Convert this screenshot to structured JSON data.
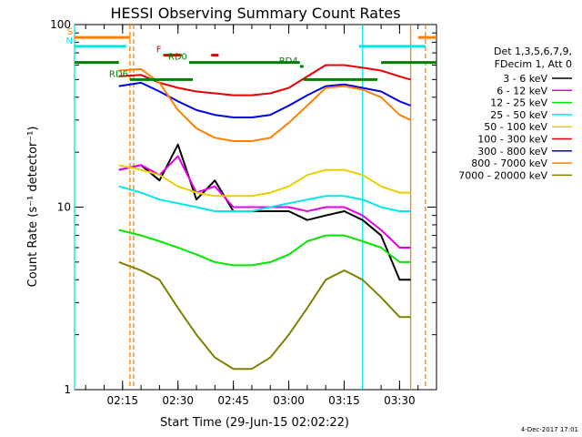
{
  "chart_data": {
    "type": "line",
    "title": "HESSI Observing Summary Count Rates",
    "xlabel": "Start Time (29-Jun-15 02:02:22)",
    "ylabel": "Count Rate (s⁻¹ detector⁻¹)",
    "yscale": "log",
    "ylim": [
      1,
      100
    ],
    "xlim": [
      "02:02",
      "03:40"
    ],
    "x_ticks": [
      "02:15",
      "02:30",
      "02:45",
      "03:00",
      "03:15",
      "03:30"
    ],
    "y_ticks": [
      "1",
      "10",
      "100"
    ],
    "legend_header": [
      "Det 1,3,5,6,7,9,",
      "FDecim 1, Att 0"
    ],
    "legend_placement": "right",
    "series": [
      {
        "name": "3 - 6 keV",
        "color": "#000000",
        "x": [
          "02:14",
          "02:20",
          "02:25",
          "02:30",
          "02:35",
          "02:40",
          "02:45",
          "02:50",
          "02:55",
          "03:00",
          "03:05",
          "03:10",
          "03:15",
          "03:20",
          "03:25",
          "03:30",
          "03:33"
        ],
        "y": [
          16,
          17,
          14,
          22,
          11,
          14,
          9.5,
          9.5,
          9.5,
          9.5,
          8.5,
          9,
          9.5,
          8.5,
          7,
          4,
          4
        ]
      },
      {
        "name": "6 - 12 keV",
        "color": "#e800e8",
        "x": [
          "02:14",
          "02:20",
          "02:25",
          "02:30",
          "02:35",
          "02:40",
          "02:45",
          "02:50",
          "02:55",
          "03:00",
          "03:05",
          "03:10",
          "03:15",
          "03:20",
          "03:25",
          "03:30",
          "03:33"
        ],
        "y": [
          16,
          17,
          15,
          19,
          12,
          13,
          10,
          10,
          10,
          10,
          9.5,
          10,
          10,
          9,
          7.5,
          6,
          6
        ]
      },
      {
        "name": "12 - 25 keV",
        "color": "#00e800",
        "x": [
          "02:14",
          "02:20",
          "02:25",
          "02:30",
          "02:35",
          "02:40",
          "02:45",
          "02:50",
          "02:55",
          "03:00",
          "03:05",
          "03:10",
          "03:15",
          "03:20",
          "03:25",
          "03:30",
          "03:33"
        ],
        "y": [
          7.5,
          7,
          6.5,
          6,
          5.5,
          5,
          4.8,
          4.8,
          5,
          5.5,
          6.5,
          7,
          7,
          6.5,
          6,
          5,
          5
        ]
      },
      {
        "name": "25 - 50 keV",
        "color": "#00e8e8",
        "x": [
          "02:14",
          "02:20",
          "02:25",
          "02:30",
          "02:35",
          "02:40",
          "02:45",
          "02:50",
          "02:55",
          "03:00",
          "03:05",
          "03:10",
          "03:15",
          "03:20",
          "03:25",
          "03:30",
          "03:33"
        ],
        "y": [
          13,
          12,
          11,
          10.5,
          10,
          9.5,
          9.5,
          9.5,
          10,
          10.5,
          11,
          11.5,
          11.5,
          11,
          10,
          9.5,
          9.5
        ]
      },
      {
        "name": "50 - 100 keV",
        "color": "#e8d000",
        "x": [
          "02:14",
          "02:20",
          "02:25",
          "02:30",
          "02:35",
          "02:40",
          "02:45",
          "02:50",
          "02:55",
          "03:00",
          "03:05",
          "03:10",
          "03:15",
          "03:20",
          "03:25",
          "03:30",
          "03:33"
        ],
        "y": [
          17,
          16,
          15,
          13,
          12,
          11.5,
          11.5,
          11.5,
          12,
          13,
          15,
          16,
          16,
          15,
          13,
          12,
          12
        ]
      },
      {
        "name": "100 - 300 keV",
        "color": "#e80000",
        "x": [
          "02:14",
          "02:20",
          "02:25",
          "02:30",
          "02:35",
          "02:40",
          "02:45",
          "02:50",
          "02:55",
          "03:00",
          "03:05",
          "03:10",
          "03:15",
          "03:20",
          "03:25",
          "03:30",
          "03:33"
        ],
        "y": [
          52,
          53,
          48,
          45,
          43,
          42,
          41,
          41,
          42,
          45,
          52,
          60,
          60,
          58,
          56,
          52,
          50
        ]
      },
      {
        "name": "300 - 800 keV",
        "color": "#0000e8",
        "x": [
          "02:14",
          "02:20",
          "02:25",
          "02:30",
          "02:35",
          "02:40",
          "02:45",
          "02:50",
          "02:55",
          "03:00",
          "03:05",
          "03:10",
          "03:15",
          "03:20",
          "03:25",
          "03:30",
          "03:33"
        ],
        "y": [
          46,
          48,
          43,
          38,
          34,
          32,
          31,
          31,
          32,
          36,
          41,
          46,
          47,
          45,
          43,
          38,
          36
        ]
      },
      {
        "name": "800 - 7000 keV",
        "color": "#ff8000",
        "x": [
          "02:14",
          "02:20",
          "02:25",
          "02:30",
          "02:35",
          "02:40",
          "02:45",
          "02:50",
          "02:55",
          "03:00",
          "03:05",
          "03:10",
          "03:15",
          "03:20",
          "03:25",
          "03:30",
          "03:33"
        ],
        "y": [
          56,
          57,
          48,
          34,
          27,
          24,
          23,
          23,
          24,
          29,
          36,
          45,
          46,
          44,
          40,
          32,
          30
        ]
      },
      {
        "name": "7000 - 20000 keV",
        "color": "#808000",
        "x": [
          "02:14",
          "02:20",
          "02:25",
          "02:30",
          "02:35",
          "02:40",
          "02:45",
          "02:50",
          "02:55",
          "03:00",
          "03:05",
          "03:10",
          "03:15",
          "03:20",
          "03:25",
          "03:30",
          "03:33"
        ],
        "y": [
          5,
          4.5,
          4,
          2.8,
          2,
          1.5,
          1.3,
          1.3,
          1.5,
          2,
          2.8,
          4,
          4.5,
          4,
          3.2,
          2.5,
          2.5
        ]
      }
    ],
    "flags": [
      {
        "label": "S",
        "color": "#ff8000",
        "y_value": 85,
        "segments": [
          [
            "02:02",
            "02:17"
          ],
          [
            "03:35",
            "03:40"
          ]
        ]
      },
      {
        "label": "N",
        "color": "#00e8e8",
        "y_value": 76,
        "segments": [
          [
            "02:02",
            "02:16"
          ],
          [
            "03:19",
            "03:37"
          ]
        ]
      },
      {
        "label": "F",
        "color": "#e80000",
        "y_value": 68,
        "segments": [
          [
            "02:26",
            "02:31"
          ],
          [
            "02:39",
            "02:41"
          ]
        ]
      },
      {
        "label": "RD0",
        "color": "#008000",
        "y_value": 62,
        "segments": [
          [
            "02:02",
            "02:14"
          ],
          [
            "02:33",
            "03:03"
          ],
          [
            "03:25",
            "03:40"
          ]
        ]
      },
      {
        "label": "RD4",
        "color": "#008000",
        "y_value": 59,
        "segments": [
          [
            "03:03",
            "03:04"
          ]
        ]
      },
      {
        "label": "RD6",
        "color": "#008000",
        "y_value": 50,
        "segments": [
          [
            "02:17",
            "02:34"
          ],
          [
            "03:04",
            "03:24"
          ]
        ]
      }
    ],
    "vertical_markers": [
      {
        "color": "#00e8e8",
        "style": "solid",
        "x": "02:02"
      },
      {
        "color": "#ff8000",
        "style": "dashed",
        "x": "02:17"
      },
      {
        "color": "#ff8000",
        "style": "dashed",
        "x": "02:18"
      },
      {
        "color": "#00e8e8",
        "style": "solid",
        "x": "03:20"
      },
      {
        "color": "#ff8000",
        "style": "solid",
        "x": "03:33"
      },
      {
        "color": "#ff8000",
        "style": "dashed",
        "x": "03:37"
      }
    ]
  },
  "footer": {
    "date_stamp": "4-Dec-2017 17:01"
  }
}
